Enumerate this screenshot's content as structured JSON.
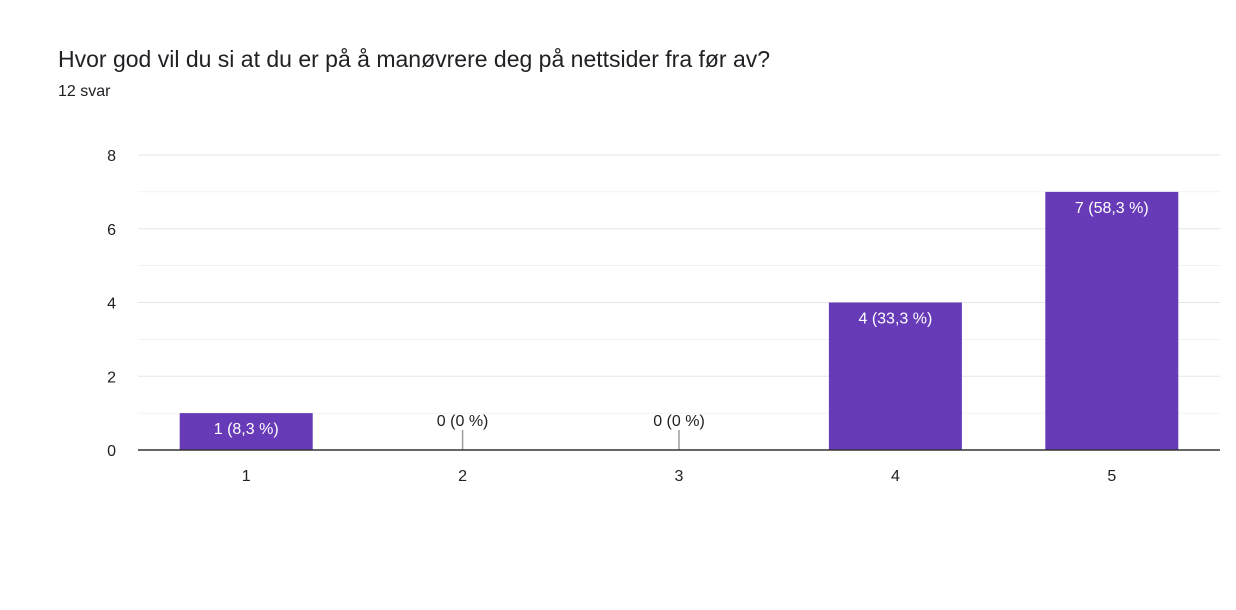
{
  "question": {
    "title": "Hvor god vil du si at du er på å manøvrere deg på nettsider fra før av?",
    "response_count": "12 svar"
  },
  "colors": {
    "bar": "#673ab7",
    "grid": "#e6e6e6",
    "axis": "#333333",
    "label_inside": "#ffffff",
    "label_outside": "#202124",
    "zero_marker": "#9e9e9e"
  },
  "chart_data": {
    "type": "bar",
    "categories": [
      "1",
      "2",
      "3",
      "4",
      "5"
    ],
    "values": [
      1,
      0,
      0,
      4,
      7
    ],
    "data_labels": [
      "1 (8,3 %)",
      "0 (0 %)",
      "0 (0 %)",
      "4 (33,3 %)",
      "7 (58,3 %)"
    ],
    "ylim": [
      0,
      8
    ],
    "yticks": [
      "0",
      "2",
      "4",
      "6",
      "8"
    ],
    "grid": true,
    "legend": false
  }
}
